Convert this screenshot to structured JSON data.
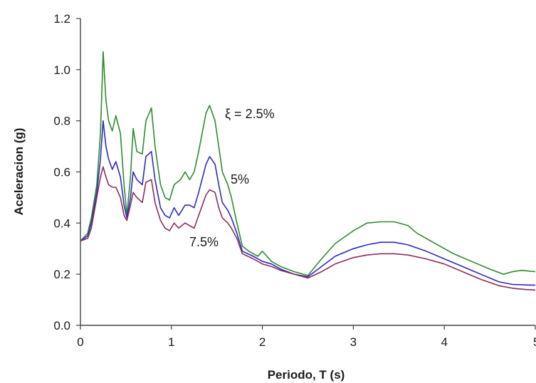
{
  "chart_data": {
    "type": "line",
    "xlabel": "Periodo, T (s)",
    "ylabel": "Aceleracion (g)",
    "xlim": [
      0,
      5
    ],
    "ylim": [
      0,
      1.2
    ],
    "x_ticks": [
      "0",
      "1",
      "2",
      "3",
      "4",
      "5"
    ],
    "y_ticks": [
      "0.0",
      "0.2",
      "0.4",
      "0.6",
      "0.8",
      "1.0",
      "1.2"
    ],
    "grid": false,
    "legend": "none",
    "annotations": [
      {
        "text": "ξ = 2.5%",
        "series": "2.5%"
      },
      {
        "text": "5%",
        "series": "5%"
      },
      {
        "text": "7.5%",
        "series": "7.5%"
      }
    ],
    "series": [
      {
        "name": "2.5%",
        "color": "#2e8b2e",
        "points": [
          [
            0,
            0.33
          ],
          [
            0.08,
            0.36
          ],
          [
            0.12,
            0.42
          ],
          [
            0.18,
            0.55
          ],
          [
            0.22,
            0.75
          ],
          [
            0.25,
            1.07
          ],
          [
            0.28,
            0.88
          ],
          [
            0.31,
            0.8
          ],
          [
            0.35,
            0.76
          ],
          [
            0.39,
            0.82
          ],
          [
            0.44,
            0.75
          ],
          [
            0.48,
            0.55
          ],
          [
            0.51,
            0.43
          ],
          [
            0.55,
            0.58
          ],
          [
            0.58,
            0.77
          ],
          [
            0.62,
            0.68
          ],
          [
            0.68,
            0.67
          ],
          [
            0.72,
            0.8
          ],
          [
            0.78,
            0.85
          ],
          [
            0.82,
            0.7
          ],
          [
            0.88,
            0.55
          ],
          [
            0.93,
            0.5
          ],
          [
            0.98,
            0.49
          ],
          [
            1.03,
            0.55
          ],
          [
            1.1,
            0.57
          ],
          [
            1.15,
            0.6
          ],
          [
            1.2,
            0.57
          ],
          [
            1.25,
            0.6
          ],
          [
            1.3,
            0.68
          ],
          [
            1.38,
            0.83
          ],
          [
            1.42,
            0.86
          ],
          [
            1.48,
            0.8
          ],
          [
            1.52,
            0.7
          ],
          [
            1.56,
            0.6
          ],
          [
            1.62,
            0.55
          ],
          [
            1.66,
            0.5
          ],
          [
            1.72,
            0.4
          ],
          [
            1.78,
            0.31
          ],
          [
            1.85,
            0.29
          ],
          [
            1.95,
            0.27
          ],
          [
            2.0,
            0.29
          ],
          [
            2.05,
            0.27
          ],
          [
            2.1,
            0.25
          ],
          [
            2.2,
            0.23
          ],
          [
            2.35,
            0.21
          ],
          [
            2.5,
            0.195
          ],
          [
            2.65,
            0.26
          ],
          [
            2.8,
            0.32
          ],
          [
            3.0,
            0.37
          ],
          [
            3.15,
            0.4
          ],
          [
            3.3,
            0.405
          ],
          [
            3.45,
            0.405
          ],
          [
            3.6,
            0.39
          ],
          [
            3.7,
            0.36
          ],
          [
            3.9,
            0.32
          ],
          [
            4.1,
            0.28
          ],
          [
            4.3,
            0.25
          ],
          [
            4.5,
            0.22
          ],
          [
            4.65,
            0.2
          ],
          [
            4.75,
            0.21
          ],
          [
            4.85,
            0.215
          ],
          [
            5.0,
            0.21
          ]
        ]
      },
      {
        "name": "5%",
        "color": "#2b2bbf",
        "points": [
          [
            0,
            0.33
          ],
          [
            0.08,
            0.35
          ],
          [
            0.12,
            0.4
          ],
          [
            0.18,
            0.52
          ],
          [
            0.22,
            0.65
          ],
          [
            0.25,
            0.8
          ],
          [
            0.28,
            0.7
          ],
          [
            0.31,
            0.65
          ],
          [
            0.35,
            0.61
          ],
          [
            0.39,
            0.64
          ],
          [
            0.44,
            0.58
          ],
          [
            0.48,
            0.47
          ],
          [
            0.51,
            0.42
          ],
          [
            0.55,
            0.5
          ],
          [
            0.58,
            0.6
          ],
          [
            0.62,
            0.57
          ],
          [
            0.68,
            0.55
          ],
          [
            0.72,
            0.66
          ],
          [
            0.78,
            0.68
          ],
          [
            0.82,
            0.57
          ],
          [
            0.88,
            0.46
          ],
          [
            0.93,
            0.43
          ],
          [
            0.98,
            0.42
          ],
          [
            1.03,
            0.46
          ],
          [
            1.08,
            0.43
          ],
          [
            1.15,
            0.47
          ],
          [
            1.2,
            0.47
          ],
          [
            1.25,
            0.46
          ],
          [
            1.3,
            0.52
          ],
          [
            1.38,
            0.63
          ],
          [
            1.42,
            0.66
          ],
          [
            1.48,
            0.63
          ],
          [
            1.52,
            0.55
          ],
          [
            1.56,
            0.48
          ],
          [
            1.62,
            0.45
          ],
          [
            1.66,
            0.42
          ],
          [
            1.72,
            0.36
          ],
          [
            1.78,
            0.29
          ],
          [
            1.9,
            0.27
          ],
          [
            2.0,
            0.25
          ],
          [
            2.1,
            0.24
          ],
          [
            2.2,
            0.22
          ],
          [
            2.35,
            0.2
          ],
          [
            2.5,
            0.19
          ],
          [
            2.65,
            0.23
          ],
          [
            2.8,
            0.27
          ],
          [
            3.0,
            0.3
          ],
          [
            3.15,
            0.315
          ],
          [
            3.3,
            0.325
          ],
          [
            3.45,
            0.325
          ],
          [
            3.6,
            0.315
          ],
          [
            3.8,
            0.29
          ],
          [
            4.0,
            0.26
          ],
          [
            4.2,
            0.23
          ],
          [
            4.4,
            0.2
          ],
          [
            4.6,
            0.17
          ],
          [
            4.75,
            0.16
          ],
          [
            4.9,
            0.158
          ],
          [
            5.0,
            0.157
          ]
        ]
      },
      {
        "name": "7.5%",
        "color": "#8b2e5c",
        "points": [
          [
            0,
            0.33
          ],
          [
            0.08,
            0.34
          ],
          [
            0.12,
            0.38
          ],
          [
            0.18,
            0.5
          ],
          [
            0.22,
            0.58
          ],
          [
            0.25,
            0.62
          ],
          [
            0.28,
            0.58
          ],
          [
            0.31,
            0.55
          ],
          [
            0.35,
            0.54
          ],
          [
            0.39,
            0.54
          ],
          [
            0.44,
            0.5
          ],
          [
            0.48,
            0.43
          ],
          [
            0.51,
            0.41
          ],
          [
            0.55,
            0.47
          ],
          [
            0.58,
            0.52
          ],
          [
            0.62,
            0.5
          ],
          [
            0.68,
            0.48
          ],
          [
            0.72,
            0.56
          ],
          [
            0.78,
            0.57
          ],
          [
            0.82,
            0.48
          ],
          [
            0.88,
            0.41
          ],
          [
            0.93,
            0.38
          ],
          [
            0.98,
            0.37
          ],
          [
            1.03,
            0.4
          ],
          [
            1.08,
            0.38
          ],
          [
            1.15,
            0.4
          ],
          [
            1.2,
            0.39
          ],
          [
            1.25,
            0.38
          ],
          [
            1.3,
            0.43
          ],
          [
            1.38,
            0.51
          ],
          [
            1.42,
            0.53
          ],
          [
            1.48,
            0.52
          ],
          [
            1.52,
            0.46
          ],
          [
            1.56,
            0.42
          ],
          [
            1.62,
            0.4
          ],
          [
            1.66,
            0.38
          ],
          [
            1.72,
            0.34
          ],
          [
            1.78,
            0.28
          ],
          [
            1.9,
            0.26
          ],
          [
            2.0,
            0.24
          ],
          [
            2.1,
            0.23
          ],
          [
            2.2,
            0.215
          ],
          [
            2.35,
            0.2
          ],
          [
            2.5,
            0.185
          ],
          [
            2.65,
            0.21
          ],
          [
            2.8,
            0.24
          ],
          [
            3.0,
            0.265
          ],
          [
            3.15,
            0.275
          ],
          [
            3.3,
            0.28
          ],
          [
            3.45,
            0.28
          ],
          [
            3.6,
            0.275
          ],
          [
            3.8,
            0.26
          ],
          [
            4.0,
            0.24
          ],
          [
            4.2,
            0.21
          ],
          [
            4.4,
            0.18
          ],
          [
            4.6,
            0.155
          ],
          [
            4.75,
            0.145
          ],
          [
            4.9,
            0.14
          ],
          [
            5.0,
            0.138
          ]
        ]
      }
    ]
  }
}
